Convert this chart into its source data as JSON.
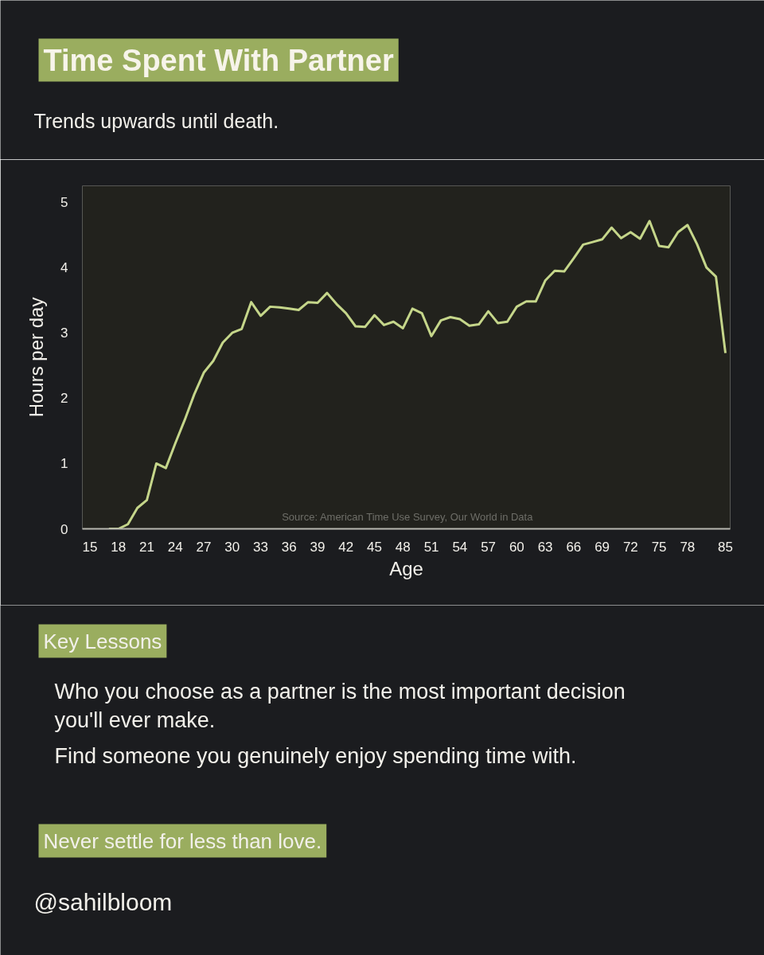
{
  "chart_data": {
    "type": "line",
    "title": "Time Spent With Partner",
    "subtitle": "Trends upwards until death.",
    "xlabel": "Age",
    "ylabel": "Hours per day",
    "categories": [
      "15",
      null,
      null,
      "18",
      null,
      null,
      "21",
      null,
      null,
      "24",
      null,
      null,
      "27",
      null,
      null,
      "30",
      null,
      null,
      "33",
      null,
      null,
      "36",
      null,
      null,
      "39",
      null,
      null,
      "42",
      null,
      null,
      "45",
      null,
      null,
      "48",
      null,
      null,
      "51",
      null,
      null,
      "54",
      null,
      null,
      "57",
      null,
      null,
      "60",
      null,
      null,
      "63",
      null,
      null,
      "66",
      null,
      null,
      "69",
      null,
      null,
      "72",
      null,
      null,
      "75",
      null,
      null,
      "78",
      null,
      null,
      null,
      "85"
    ],
    "series": [
      {
        "color": "#c5d68a",
        "values": [
          null,
          null,
          0,
          0,
          0.07,
          0.32,
          0.44,
          1.0,
          0.93,
          1.31,
          1.67,
          2.06,
          2.39,
          2.57,
          2.85,
          3.0,
          3.06,
          3.47,
          3.26,
          3.4,
          3.39,
          3.37,
          3.35,
          3.47,
          3.46,
          3.61,
          3.44,
          3.3,
          3.1,
          3.09,
          3.27,
          3.12,
          3.17,
          3.07,
          3.37,
          3.3,
          2.95,
          3.19,
          3.24,
          3.21,
          3.11,
          3.13,
          3.33,
          3.15,
          3.17,
          3.4,
          3.48,
          3.48,
          3.8,
          3.95,
          3.94,
          4.14,
          4.35,
          4.39,
          4.43,
          4.61,
          4.45,
          4.54,
          4.44,
          4.71,
          4.33,
          4.31,
          4.54,
          4.65,
          4.36,
          4.0,
          3.86,
          2.69
        ]
      }
    ],
    "ylim": [
      0,
      5.25
    ],
    "yticks": [
      0,
      1,
      2,
      3,
      4,
      5
    ],
    "grid": false,
    "line_style": "solid",
    "marker": "none",
    "annotations": [
      "Source: American Time Use Survey, Our World in Data",
      "Key Lessons",
      "Who you choose as a partner is the most important decision you'll ever make.",
      "Find someone you genuinely enjoy spending time with.",
      "Never settle for less than love.",
      "@sahilbloom"
    ]
  }
}
